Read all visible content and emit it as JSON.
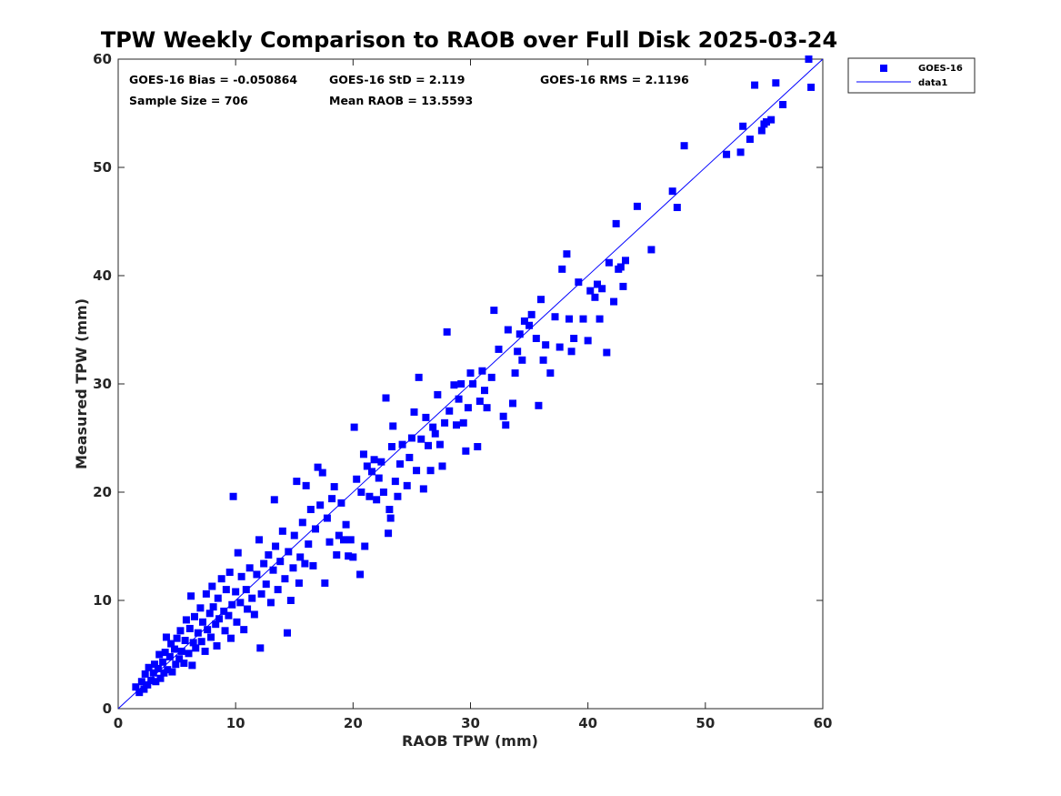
{
  "chart_data": {
    "type": "scatter",
    "title": "TPW Weekly Comparison to RAOB over Full Disk 2025-03-24",
    "xlabel": "RAOB TPW (mm)",
    "ylabel": "Measured TPW (mm)",
    "xlim": [
      0,
      60
    ],
    "ylim": [
      0,
      60
    ],
    "xticks": [
      0,
      10,
      20,
      30,
      40,
      50,
      60
    ],
    "yticks": [
      0,
      10,
      20,
      30,
      40,
      50,
      60
    ],
    "grid": false,
    "legend_position": "outside-top-right",
    "marker_color": "#0000ff",
    "line_color": "#0000ff",
    "stats": {
      "bias": "GOES-16 Bias = -0.050864",
      "std": "GOES-16 StD = 2.119",
      "rms": "GOES-16 RMS = 2.1196",
      "sample_size": "Sample Size = 706",
      "mean_raob": "Mean RAOB = 13.5593"
    },
    "series": [
      {
        "name": "GOES-16",
        "kind": "scatter",
        "marker": "square",
        "points": [
          [
            1.5,
            2.0
          ],
          [
            1.8,
            1.5
          ],
          [
            2.0,
            2.5
          ],
          [
            2.2,
            1.8
          ],
          [
            2.3,
            3.2
          ],
          [
            2.5,
            2.2
          ],
          [
            2.6,
            3.8
          ],
          [
            2.8,
            2.6
          ],
          [
            3.0,
            3.3
          ],
          [
            3.1,
            4.1
          ],
          [
            3.2,
            2.5
          ],
          [
            3.4,
            3.7
          ],
          [
            3.5,
            5.0
          ],
          [
            3.6,
            2.8
          ],
          [
            3.8,
            4.3
          ],
          [
            3.9,
            3.3
          ],
          [
            4.0,
            5.2
          ],
          [
            4.1,
            6.6
          ],
          [
            4.2,
            3.6
          ],
          [
            4.4,
            4.8
          ],
          [
            4.5,
            6.0
          ],
          [
            4.6,
            3.4
          ],
          [
            4.8,
            5.5
          ],
          [
            4.9,
            4.1
          ],
          [
            5.0,
            6.5
          ],
          [
            5.2,
            4.6
          ],
          [
            5.3,
            7.2
          ],
          [
            5.4,
            5.3
          ],
          [
            5.6,
            4.2
          ],
          [
            5.7,
            6.3
          ],
          [
            5.8,
            8.2
          ],
          [
            6.0,
            5.1
          ],
          [
            6.1,
            7.4
          ],
          [
            6.2,
            10.4
          ],
          [
            6.3,
            4.0
          ],
          [
            6.4,
            6.1
          ],
          [
            6.5,
            8.5
          ],
          [
            6.6,
            5.6
          ],
          [
            6.8,
            7.0
          ],
          [
            7.0,
            9.3
          ],
          [
            7.1,
            6.2
          ],
          [
            7.2,
            8.0
          ],
          [
            7.4,
            5.3
          ],
          [
            7.5,
            10.6
          ],
          [
            7.6,
            7.3
          ],
          [
            7.8,
            8.8
          ],
          [
            7.9,
            6.6
          ],
          [
            8.0,
            11.3
          ],
          [
            8.1,
            9.4
          ],
          [
            8.3,
            7.8
          ],
          [
            8.4,
            5.8
          ],
          [
            8.5,
            10.2
          ],
          [
            8.6,
            8.3
          ],
          [
            8.8,
            12.0
          ],
          [
            9.0,
            9.0
          ],
          [
            9.1,
            7.2
          ],
          [
            9.2,
            11.0
          ],
          [
            9.4,
            8.6
          ],
          [
            9.5,
            12.6
          ],
          [
            9.6,
            6.5
          ],
          [
            9.7,
            9.6
          ],
          [
            9.8,
            19.6
          ],
          [
            10.0,
            10.8
          ],
          [
            10.1,
            8.0
          ],
          [
            10.2,
            14.4
          ],
          [
            10.4,
            9.8
          ],
          [
            10.5,
            12.2
          ],
          [
            10.7,
            7.3
          ],
          [
            10.9,
            11.0
          ],
          [
            11.0,
            9.2
          ],
          [
            11.2,
            13.0
          ],
          [
            11.4,
            10.2
          ],
          [
            11.6,
            8.7
          ],
          [
            11.8,
            12.4
          ],
          [
            12.0,
            15.6
          ],
          [
            12.1,
            5.6
          ],
          [
            12.2,
            10.6
          ],
          [
            12.4,
            13.4
          ],
          [
            12.6,
            11.5
          ],
          [
            12.8,
            14.2
          ],
          [
            13.0,
            9.8
          ],
          [
            13.2,
            12.8
          ],
          [
            13.3,
            19.3
          ],
          [
            13.4,
            15.0
          ],
          [
            13.6,
            11.0
          ],
          [
            13.8,
            13.6
          ],
          [
            14.0,
            16.4
          ],
          [
            14.2,
            12.0
          ],
          [
            14.4,
            7.0
          ],
          [
            14.5,
            14.5
          ],
          [
            14.7,
            10.0
          ],
          [
            14.9,
            13.0
          ],
          [
            15.0,
            16.0
          ],
          [
            15.2,
            21.0
          ],
          [
            15.4,
            11.6
          ],
          [
            15.5,
            14.0
          ],
          [
            15.7,
            17.2
          ],
          [
            15.9,
            13.4
          ],
          [
            16.0,
            20.6
          ],
          [
            16.2,
            15.2
          ],
          [
            16.4,
            18.4
          ],
          [
            16.6,
            13.2
          ],
          [
            16.8,
            16.6
          ],
          [
            17.0,
            22.3
          ],
          [
            17.2,
            18.8
          ],
          [
            17.4,
            21.8
          ],
          [
            17.6,
            11.6
          ],
          [
            17.8,
            17.6
          ],
          [
            18.0,
            15.4
          ],
          [
            18.2,
            19.4
          ],
          [
            18.4,
            20.5
          ],
          [
            18.6,
            14.2
          ],
          [
            18.8,
            16.0
          ],
          [
            19.0,
            19.0
          ],
          [
            19.2,
            15.6
          ],
          [
            19.4,
            17.0
          ],
          [
            19.6,
            14.1
          ],
          [
            19.8,
            15.6
          ],
          [
            20.0,
            14.0
          ],
          [
            20.1,
            26.0
          ],
          [
            20.3,
            21.2
          ],
          [
            20.6,
            12.4
          ],
          [
            20.7,
            20.0
          ],
          [
            20.9,
            23.5
          ],
          [
            21.0,
            15.0
          ],
          [
            21.2,
            22.4
          ],
          [
            21.4,
            19.6
          ],
          [
            21.6,
            21.9
          ],
          [
            21.8,
            23.0
          ],
          [
            22.0,
            19.3
          ],
          [
            22.2,
            21.3
          ],
          [
            22.4,
            22.8
          ],
          [
            22.6,
            20.0
          ],
          [
            22.8,
            28.7
          ],
          [
            23.0,
            16.2
          ],
          [
            23.1,
            18.4
          ],
          [
            23.2,
            17.6
          ],
          [
            23.3,
            24.2
          ],
          [
            23.4,
            26.1
          ],
          [
            23.6,
            21.0
          ],
          [
            23.8,
            19.6
          ],
          [
            24.0,
            22.6
          ],
          [
            24.2,
            24.4
          ],
          [
            24.6,
            20.6
          ],
          [
            24.8,
            23.2
          ],
          [
            25.0,
            25.0
          ],
          [
            25.2,
            27.4
          ],
          [
            25.4,
            22.0
          ],
          [
            25.6,
            30.6
          ],
          [
            25.8,
            24.9
          ],
          [
            26.0,
            20.3
          ],
          [
            26.2,
            26.9
          ],
          [
            26.4,
            24.3
          ],
          [
            26.6,
            22.0
          ],
          [
            26.8,
            26.0
          ],
          [
            27.0,
            25.4
          ],
          [
            27.2,
            29.0
          ],
          [
            27.4,
            24.4
          ],
          [
            27.6,
            22.4
          ],
          [
            27.8,
            26.4
          ],
          [
            28.0,
            34.8
          ],
          [
            28.2,
            27.5
          ],
          [
            28.6,
            29.9
          ],
          [
            28.8,
            26.2
          ],
          [
            29.0,
            28.6
          ],
          [
            29.2,
            30.0
          ],
          [
            29.4,
            26.4
          ],
          [
            29.6,
            23.8
          ],
          [
            29.8,
            27.8
          ],
          [
            30.0,
            31.0
          ],
          [
            30.2,
            30.0
          ],
          [
            30.6,
            24.2
          ],
          [
            30.8,
            28.4
          ],
          [
            31.0,
            31.2
          ],
          [
            31.2,
            29.4
          ],
          [
            31.4,
            27.8
          ],
          [
            31.8,
            30.6
          ],
          [
            32.0,
            36.8
          ],
          [
            32.4,
            33.2
          ],
          [
            32.8,
            27.0
          ],
          [
            33.0,
            26.2
          ],
          [
            33.2,
            35.0
          ],
          [
            33.6,
            28.2
          ],
          [
            33.8,
            31.0
          ],
          [
            34.0,
            33.0
          ],
          [
            34.2,
            34.6
          ],
          [
            34.4,
            32.2
          ],
          [
            34.6,
            35.8
          ],
          [
            35.0,
            35.4
          ],
          [
            35.2,
            36.4
          ],
          [
            35.6,
            34.2
          ],
          [
            35.8,
            28.0
          ],
          [
            36.0,
            37.8
          ],
          [
            36.2,
            32.2
          ],
          [
            36.4,
            33.6
          ],
          [
            36.8,
            31.0
          ],
          [
            37.2,
            36.2
          ],
          [
            37.6,
            33.4
          ],
          [
            37.8,
            40.6
          ],
          [
            38.2,
            42.0
          ],
          [
            38.4,
            36.0
          ],
          [
            38.6,
            33.0
          ],
          [
            38.8,
            34.2
          ],
          [
            39.2,
            39.4
          ],
          [
            39.6,
            36.0
          ],
          [
            40.0,
            34.0
          ],
          [
            40.2,
            38.6
          ],
          [
            40.6,
            38.0
          ],
          [
            40.8,
            39.2
          ],
          [
            41.0,
            36.0
          ],
          [
            41.2,
            38.8
          ],
          [
            41.6,
            32.9
          ],
          [
            41.8,
            41.2
          ],
          [
            42.2,
            37.6
          ],
          [
            42.4,
            44.8
          ],
          [
            42.6,
            40.6
          ],
          [
            42.8,
            40.8
          ],
          [
            43.0,
            39.0
          ],
          [
            43.2,
            41.4
          ],
          [
            44.2,
            46.4
          ],
          [
            45.4,
            42.4
          ],
          [
            47.2,
            47.8
          ],
          [
            47.6,
            46.3
          ],
          [
            48.2,
            52.0
          ],
          [
            51.8,
            51.2
          ],
          [
            53.0,
            51.4
          ],
          [
            53.2,
            53.8
          ],
          [
            53.8,
            52.6
          ],
          [
            54.2,
            57.6
          ],
          [
            54.8,
            53.4
          ],
          [
            55.0,
            54.0
          ],
          [
            55.2,
            54.2
          ],
          [
            55.6,
            54.4
          ],
          [
            56.0,
            57.8
          ],
          [
            56.6,
            55.8
          ],
          [
            58.8,
            60.0
          ],
          [
            59.0,
            57.4
          ]
        ]
      },
      {
        "name": "data1",
        "kind": "line",
        "points": [
          [
            0,
            0
          ],
          [
            60,
            60
          ]
        ]
      }
    ]
  }
}
